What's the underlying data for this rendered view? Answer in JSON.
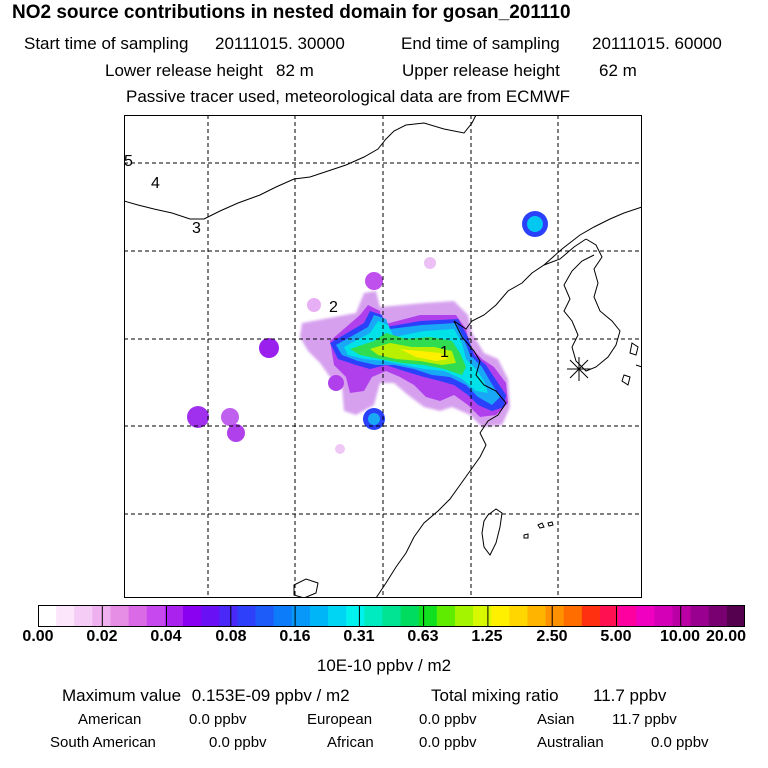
{
  "title": "NO2 source contributions in nested domain for gosan_201110",
  "header": {
    "start_label": "Start time of sampling",
    "start_value": "20111015. 30000",
    "end_label": "End time of sampling",
    "end_value": "20111015. 60000",
    "lower_label": "Lower release height",
    "lower_value": "82 m",
    "upper_label": "Upper release height",
    "upper_value": "62 m",
    "note": "Passive tracer used, meteorological data are from ECMWF"
  },
  "map": {
    "markers": [
      "1",
      "2",
      "3",
      "4",
      "5"
    ],
    "receptor_symbol": "✳"
  },
  "colorbar": {
    "colors": [
      "#ffffff",
      "#fbe6fb",
      "#f5ccf5",
      "#eeb0ee",
      "#e68ee6",
      "#da6ae6",
      "#c648ee",
      "#aa22ee",
      "#8a00f0",
      "#6a10f4",
      "#4a28f8",
      "#2e40fa",
      "#1e5cfa",
      "#0c7cfa",
      "#0898fa",
      "#00b4f8",
      "#00d6f4",
      "#00f2ee",
      "#00ecc0",
      "#00e494",
      "#00dc60",
      "#10e020",
      "#60ec00",
      "#a4f400",
      "#d8f800",
      "#fff000",
      "#ffd600",
      "#ffb400",
      "#ff9000",
      "#ff6c00",
      "#ff3010",
      "#ff1050",
      "#ff00a0",
      "#f000c0",
      "#d400b8",
      "#ba00a4",
      "#9a0090",
      "#780070",
      "#560050"
    ],
    "ticks": [
      "0.00",
      "0.02",
      "0.04",
      "0.08",
      "0.16",
      "0.31",
      "0.63",
      "1.25",
      "2.50",
      "5.00",
      "10.00",
      "20.00"
    ],
    "units": "10E-10 ppbv / m2"
  },
  "summary": {
    "max_label": "Maximum value",
    "max_value": "0.153E-09 ppbv / m2",
    "total_label": "Total mixing ratio",
    "total_value": "11.7 ppbv",
    "regions": [
      {
        "name": "American",
        "value": "0.0 ppbv"
      },
      {
        "name": "European",
        "value": "0.0 ppbv"
      },
      {
        "name": "Asian",
        "value": "11.7 ppbv"
      },
      {
        "name": "South American",
        "value": "0.0 ppbv"
      },
      {
        "name": "African",
        "value": "0.0 ppbv"
      },
      {
        "name": "Australian",
        "value": "0.0 ppbv"
      }
    ]
  }
}
